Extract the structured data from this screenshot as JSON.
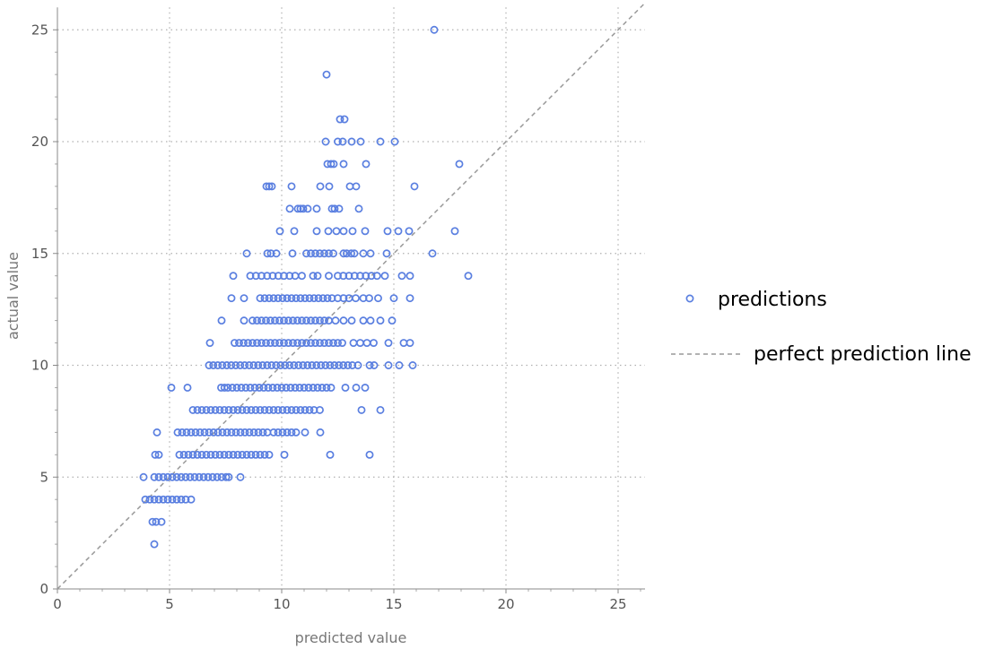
{
  "chart_data": {
    "type": "scatter",
    "xlabel": "predicted value",
    "ylabel": "actual value",
    "xlim": [
      0,
      26.2
    ],
    "ylim": [
      0,
      26
    ],
    "xticks": [
      0,
      5,
      10,
      15,
      20,
      25
    ],
    "yticks": [
      0,
      5,
      10,
      15,
      20,
      25
    ],
    "grid": true,
    "legend_placement": "right",
    "colors": {
      "predictions": "#5a7fe0",
      "perfect": "#999999",
      "grid": "#b0b0b0",
      "tick_text": "#555555",
      "axis_label": "#777777"
    },
    "series": [
      {
        "name": "predictions",
        "rows": [
          {
            "y": 25,
            "x": [
              16.8
            ]
          },
          {
            "y": 23,
            "x": [
              12.0
            ]
          },
          {
            "y": 21,
            "x": [
              12.6,
              12.8
            ]
          },
          {
            "y": 20,
            "x": [
              11.96,
              12.5,
              12.72,
              13.12,
              13.52,
              14.4,
              15.04
            ]
          },
          {
            "y": 19,
            "x": [
              12.04,
              12.2,
              12.32,
              12.76,
              13.76,
              17.92
            ]
          },
          {
            "y": 18,
            "x": [
              9.32,
              9.44,
              9.56,
              10.44,
              11.72,
              12.12,
              13.04,
              13.32,
              15.92
            ]
          },
          {
            "y": 17,
            "x": [
              10.36,
              10.72,
              10.84,
              10.96,
              11.16,
              11.56,
              12.24,
              12.36,
              12.56,
              13.44
            ]
          },
          {
            "y": 16,
            "x": [
              9.92,
              10.56,
              11.56,
              12.08,
              12.44,
              12.76,
              13.16,
              13.72,
              14.72,
              15.2,
              15.68,
              17.72
            ]
          },
          {
            "y": 15,
            "x": [
              8.44,
              9.36,
              9.52,
              9.76,
              10.48,
              11.1,
              11.3,
              11.5,
              11.7,
              11.9,
              12.1,
              12.3,
              12.76,
              12.9,
              13.1,
              13.24,
              13.64,
              13.96,
              14.68,
              16.72
            ]
          },
          {
            "y": 14,
            "x": [
              7.84,
              8.6,
              8.85,
              9.1,
              9.35,
              9.6,
              9.85,
              10.1,
              10.35,
              10.6,
              10.9,
              11.4,
              11.6,
              12.1,
              12.5,
              12.75,
              13.0,
              13.25,
              13.5,
              13.75,
              14.0,
              14.25,
              14.6,
              15.36,
              15.72,
              18.32
            ]
          },
          {
            "y": 13,
            "x": [
              7.76,
              8.32,
              9.04,
              9.24,
              9.44,
              9.64,
              9.84,
              10.04,
              10.24,
              10.44,
              10.64,
              10.84,
              11.04,
              11.24,
              11.44,
              11.64,
              11.84,
              12.04,
              12.24,
              12.5,
              12.76,
              13.0,
              13.3,
              13.64,
              13.9,
              14.3,
              15.0,
              15.72
            ]
          },
          {
            "y": 12,
            "x": [
              7.32,
              8.32,
              8.7,
              8.9,
              9.1,
              9.3,
              9.5,
              9.7,
              9.9,
              10.1,
              10.3,
              10.5,
              10.7,
              10.9,
              11.1,
              11.3,
              11.5,
              11.7,
              11.9,
              12.1,
              12.4,
              12.76,
              13.12,
              13.64,
              13.96,
              14.4,
              14.92
            ]
          },
          {
            "y": 11,
            "x": [
              6.8,
              7.9,
              8.1,
              8.3,
              8.5,
              8.7,
              8.9,
              9.1,
              9.3,
              9.5,
              9.7,
              9.9,
              10.1,
              10.3,
              10.5,
              10.7,
              10.9,
              11.1,
              11.3,
              11.5,
              11.7,
              11.9,
              12.1,
              12.3,
              12.5,
              12.7,
              13.2,
              13.5,
              13.8,
              14.1,
              14.76,
              15.44,
              15.72
            ]
          },
          {
            "y": 10,
            "x": [
              6.76,
              6.95,
              7.15,
              7.35,
              7.55,
              7.75,
              7.95,
              8.15,
              8.35,
              8.55,
              8.75,
              8.95,
              9.15,
              9.35,
              9.55,
              9.75,
              9.95,
              10.15,
              10.35,
              10.55,
              10.75,
              10.95,
              11.15,
              11.35,
              11.55,
              11.75,
              11.95,
              12.15,
              12.35,
              12.55,
              12.75,
              12.95,
              13.15,
              13.4,
              13.92,
              14.12,
              14.76,
              15.24,
              15.84
            ]
          },
          {
            "y": 9,
            "x": [
              5.08,
              5.8,
              7.3,
              7.45,
              7.6,
              7.8,
              8.0,
              8.2,
              8.4,
              8.6,
              8.8,
              9.0,
              9.2,
              9.4,
              9.6,
              9.8,
              10.0,
              10.2,
              10.4,
              10.6,
              10.8,
              11.0,
              11.2,
              11.4,
              11.6,
              11.8,
              12.0,
              12.2,
              12.84,
              13.32,
              13.72
            ]
          },
          {
            "y": 8,
            "x": [
              6.04,
              6.24,
              6.44,
              6.64,
              6.84,
              7.04,
              7.24,
              7.44,
              7.64,
              7.84,
              8.04,
              8.24,
              8.44,
              8.64,
              8.84,
              9.04,
              9.24,
              9.44,
              9.64,
              9.84,
              10.04,
              10.24,
              10.44,
              10.64,
              10.84,
              11.04,
              11.24,
              11.44,
              11.7,
              13.56,
              14.4
            ]
          },
          {
            "y": 7,
            "x": [
              4.44,
              5.36,
              5.56,
              5.76,
              5.96,
              6.16,
              6.36,
              6.56,
              6.76,
              6.96,
              7.16,
              7.36,
              7.56,
              7.76,
              7.96,
              8.16,
              8.36,
              8.56,
              8.76,
              8.96,
              9.16,
              9.36,
              9.64,
              9.84,
              10.04,
              10.24,
              10.44,
              10.64,
              11.04,
              11.72
            ]
          },
          {
            "y": 6,
            "x": [
              4.36,
              4.52,
              5.44,
              5.64,
              5.84,
              6.04,
              6.24,
              6.44,
              6.64,
              6.84,
              7.04,
              7.24,
              7.44,
              7.64,
              7.84,
              8.04,
              8.24,
              8.44,
              8.64,
              8.84,
              9.04,
              9.24,
              9.44,
              10.12,
              12.16,
              13.92
            ]
          },
          {
            "y": 5,
            "x": [
              3.84,
              4.32,
              4.52,
              4.72,
              4.92,
              5.12,
              5.32,
              5.52,
              5.72,
              5.92,
              6.12,
              6.32,
              6.52,
              6.72,
              6.92,
              7.12,
              7.32,
              7.52,
              7.64,
              8.16
            ]
          },
          {
            "y": 4,
            "x": [
              3.92,
              4.12,
              4.32,
              4.52,
              4.72,
              4.92,
              5.12,
              5.32,
              5.52,
              5.72,
              5.96
            ]
          },
          {
            "y": 3,
            "x": [
              4.24,
              4.4,
              4.64
            ]
          },
          {
            "y": 2,
            "x": [
              4.32
            ]
          }
        ]
      },
      {
        "name": "perfect prediction line",
        "x": [
          0,
          26.2
        ],
        "y": [
          0,
          26.2
        ]
      }
    ],
    "legend": [
      "predictions",
      "perfect prediction line"
    ]
  }
}
